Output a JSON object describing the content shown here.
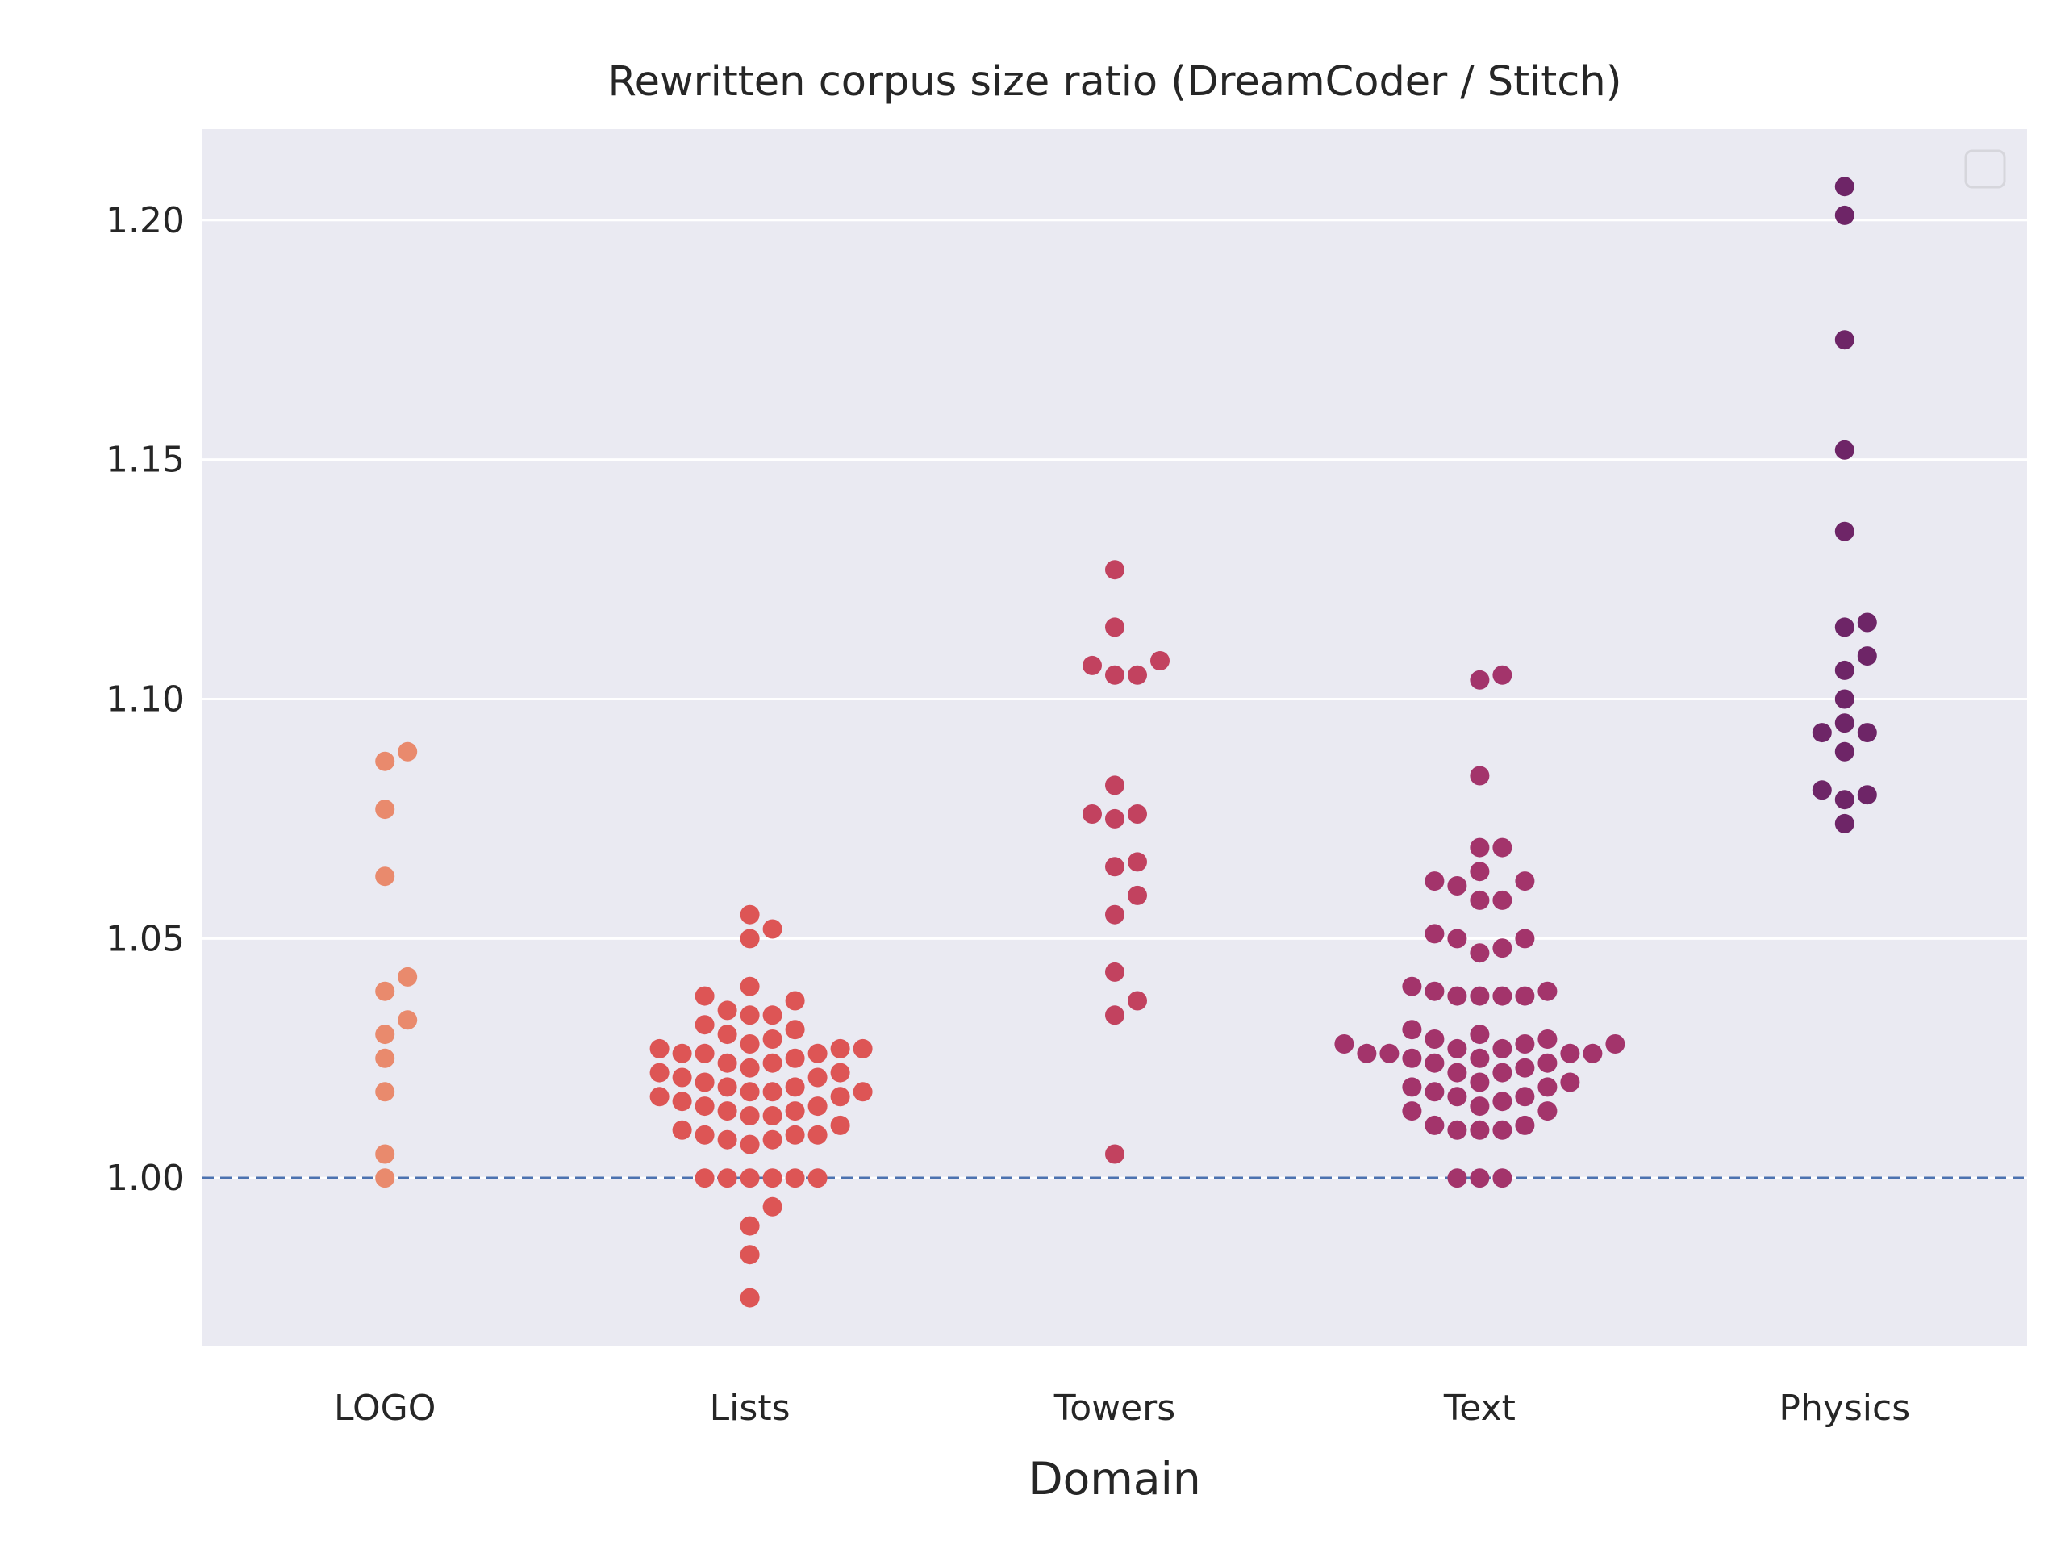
{
  "chart_data": {
    "type": "scatter",
    "subtype": "swarm",
    "title": "Rewritten corpus size ratio (DreamCoder / Stitch)",
    "xlabel": "Domain",
    "ylabel": "",
    "categories": [
      "LOGO",
      "Lists",
      "Towers",
      "Text",
      "Physics"
    ],
    "ylim": [
      0.965,
      1.219
    ],
    "yticks": [
      1.0,
      1.05,
      1.1,
      1.15,
      1.2
    ],
    "ytick_labels": [
      "1.00",
      "1.05",
      "1.10",
      "1.15",
      "1.20"
    ],
    "grid": "horizontal",
    "background": "#eaeaf2",
    "reference_line": {
      "y": 1.0,
      "style": "dashed",
      "color": "#4c72b0"
    },
    "legend": {
      "position": "top-right",
      "entries": []
    },
    "series": [
      {
        "category": "LOGO",
        "color": "#e98a6d",
        "values": [
          1.089,
          1.087,
          1.077,
          1.063,
          1.042,
          1.039,
          1.033,
          1.03,
          1.025,
          1.018,
          1.005,
          1.0
        ]
      },
      {
        "category": "Lists",
        "color": "#dd5555",
        "values": [
          1.055,
          1.052,
          1.05,
          1.04,
          1.038,
          1.037,
          1.035,
          1.034,
          1.034,
          1.032,
          1.031,
          1.03,
          1.029,
          1.028,
          1.027,
          1.027,
          1.027,
          1.026,
          1.026,
          1.026,
          1.025,
          1.024,
          1.024,
          1.023,
          1.022,
          1.022,
          1.021,
          1.021,
          1.02,
          1.019,
          1.019,
          1.018,
          1.018,
          1.018,
          1.017,
          1.017,
          1.016,
          1.015,
          1.015,
          1.014,
          1.014,
          1.013,
          1.013,
          1.011,
          1.01,
          1.009,
          1.009,
          1.009,
          1.008,
          1.008,
          1.007,
          1.0,
          1.0,
          1.0,
          1.0,
          1.0,
          1.0,
          0.994,
          0.99,
          0.984,
          0.975
        ]
      },
      {
        "category": "Towers",
        "color": "#c2425f",
        "values": [
          1.127,
          1.115,
          1.108,
          1.107,
          1.105,
          1.105,
          1.082,
          1.076,
          1.076,
          1.075,
          1.066,
          1.065,
          1.059,
          1.055,
          1.043,
          1.037,
          1.034,
          1.005
        ]
      },
      {
        "category": "Text",
        "color": "#a3346b",
        "values": [
          1.105,
          1.104,
          1.084,
          1.069,
          1.069,
          1.064,
          1.062,
          1.062,
          1.061,
          1.058,
          1.058,
          1.051,
          1.05,
          1.05,
          1.048,
          1.047,
          1.04,
          1.039,
          1.039,
          1.038,
          1.038,
          1.038,
          1.038,
          1.031,
          1.03,
          1.029,
          1.029,
          1.028,
          1.028,
          1.028,
          1.027,
          1.027,
          1.026,
          1.026,
          1.026,
          1.026,
          1.025,
          1.025,
          1.024,
          1.024,
          1.023,
          1.022,
          1.022,
          1.02,
          1.02,
          1.019,
          1.019,
          1.018,
          1.017,
          1.017,
          1.016,
          1.015,
          1.014,
          1.014,
          1.011,
          1.011,
          1.01,
          1.01,
          1.01,
          1.0,
          1.0,
          1.0
        ]
      },
      {
        "category": "Physics",
        "color": "#6e2567",
        "values": [
          1.207,
          1.201,
          1.175,
          1.152,
          1.135,
          1.116,
          1.115,
          1.109,
          1.106,
          1.1,
          1.095,
          1.093,
          1.093,
          1.089,
          1.081,
          1.08,
          1.079,
          1.074
        ]
      }
    ]
  }
}
